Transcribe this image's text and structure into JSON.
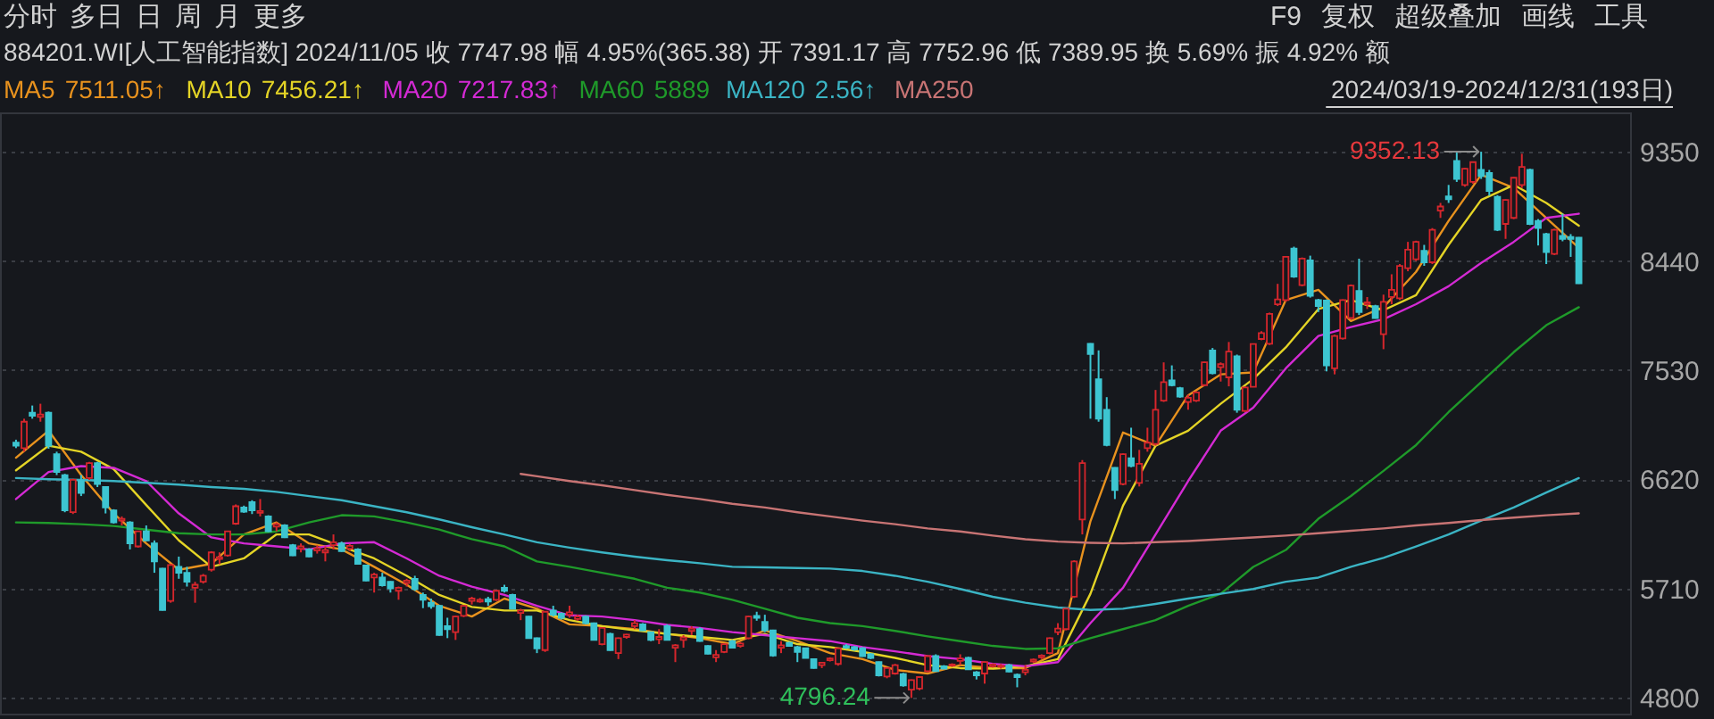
{
  "chart_data": {
    "type": "candlestick",
    "title": "884201.WI[人工智能指数] 2024/11/05 收 7747.98 幅 4.95%(365.38) 开 7391.17 高 7752.96 低 7389.95 换 5.69% 振 4.92% 额",
    "categories": [
      null,
      null,
      null,
      null,
      null,
      null,
      null,
      null,
      null,
      null,
      null,
      null,
      null,
      null,
      null,
      null,
      null,
      null,
      null,
      null,
      null,
      null,
      null,
      null,
      null,
      null,
      null,
      null,
      null,
      null,
      null,
      null,
      null,
      null,
      null,
      null,
      null,
      null,
      null,
      null,
      null,
      null,
      null,
      null,
      null,
      null,
      null,
      null,
      null,
      null,
      null,
      null,
      null,
      null,
      null,
      null,
      null,
      null,
      null,
      null,
      null,
      null,
      null,
      null,
      null,
      null,
      null,
      null,
      null,
      null,
      null,
      null,
      null,
      null,
      null,
      null,
      null,
      null,
      null,
      null,
      null,
      null,
      null,
      null,
      null,
      null,
      null,
      null,
      null,
      null,
      null,
      null,
      null,
      null,
      null,
      null,
      null,
      null,
      null,
      null,
      null,
      null,
      null,
      null,
      null,
      null,
      null,
      null,
      null,
      null,
      null,
      null,
      null,
      null,
      null,
      null,
      null,
      null,
      null,
      null,
      null,
      null,
      null,
      null,
      null,
      null,
      null,
      null,
      null,
      null,
      null,
      null,
      null,
      null,
      null,
      null,
      null,
      null,
      null,
      null,
      null,
      null,
      null,
      null,
      null,
      null,
      null,
      null,
      null,
      null,
      null,
      null,
      null,
      null,
      null,
      null,
      null,
      null,
      null,
      null,
      null,
      null,
      null,
      null,
      null,
      null,
      null,
      null,
      null,
      null,
      null,
      null,
      null,
      null,
      null,
      null,
      null,
      null,
      null,
      null,
      null,
      null,
      null,
      null,
      null,
      null,
      null,
      null,
      null,
      null,
      null,
      null,
      null
    ],
    "ohlc": [
      [
        6925,
        6950,
        6880,
        6900
      ],
      [
        6880,
        7125,
        6850,
        7100
      ],
      [
        7175,
        7235,
        7125,
        7150
      ],
      [
        7140,
        7250,
        7100,
        7160
      ],
      [
        7175,
        7185,
        6875,
        6900
      ],
      [
        6830,
        6850,
        6655,
        6680
      ],
      [
        6655,
        6665,
        6345,
        6360
      ],
      [
        6345,
        6625,
        6330,
        6615
      ],
      [
        6605,
        6655,
        6480,
        6505
      ],
      [
        6630,
        6765,
        6615,
        6755
      ],
      [
        6755,
        6765,
        6555,
        6580
      ],
      [
        6555,
        6560,
        6335,
        6385
      ],
      [
        6360,
        6370,
        6250,
        6260
      ],
      [
        6275,
        6310,
        6235,
        6290
      ],
      [
        6260,
        6270,
        6035,
        6085
      ],
      [
        6060,
        6190,
        6050,
        6185
      ],
      [
        6185,
        6235,
        6105,
        6110
      ],
      [
        6085,
        6110,
        5840,
        5935
      ],
      [
        5875,
        5880,
        5525,
        5530
      ],
      [
        5605,
        5915,
        5590,
        5905
      ],
      [
        5890,
        5975,
        5790,
        5840
      ],
      [
        5840,
        5890,
        5725,
        5765
      ],
      [
        5715,
        5765,
        5590,
        5740
      ],
      [
        5765,
        5830,
        5750,
        5815
      ],
      [
        5865,
        6020,
        5850,
        6010
      ],
      [
        5955,
        6010,
        5910,
        5970
      ],
      [
        5985,
        6190,
        5975,
        6185
      ],
      [
        6250,
        6410,
        6240,
        6395
      ],
      [
        6385,
        6400,
        6340,
        6350
      ],
      [
        6430,
        6445,
        6330,
        6360
      ],
      [
        6340,
        6455,
        6310,
        6355
      ],
      [
        6310,
        6320,
        6180,
        6185
      ],
      [
        6225,
        6260,
        6185,
        6245
      ],
      [
        6235,
        6245,
        6130,
        6135
      ],
      [
        6070,
        6080,
        5980,
        5985
      ],
      [
        6040,
        6085,
        6010,
        6060
      ],
      [
        6035,
        6045,
        5970,
        5975
      ],
      [
        6025,
        6070,
        6000,
        6045
      ],
      [
        6010,
        6060,
        5935,
        6030
      ],
      [
        6070,
        6160,
        6035,
        6095
      ],
      [
        6085,
        6100,
        6015,
        6020
      ],
      [
        6040,
        6080,
        6020,
        6065
      ],
      [
        6035,
        6045,
        5910,
        5915
      ],
      [
        5900,
        5905,
        5770,
        5775
      ],
      [
        5800,
        5840,
        5675,
        5825
      ],
      [
        5800,
        5840,
        5725,
        5735
      ],
      [
        5765,
        5770,
        5675,
        5710
      ],
      [
        5690,
        5725,
        5615,
        5715
      ],
      [
        5755,
        5790,
        5725,
        5775
      ],
      [
        5790,
        5815,
        5690,
        5705
      ],
      [
        5655,
        5675,
        5545,
        5615
      ],
      [
        5590,
        5625,
        5540,
        5560
      ],
      [
        5565,
        5570,
        5315,
        5320
      ],
      [
        5395,
        5465,
        5295,
        5370
      ],
      [
        5345,
        5480,
        5280,
        5475
      ],
      [
        5480,
        5570,
        5470,
        5565
      ],
      [
        5605,
        5640,
        5575,
        5625
      ],
      [
        5600,
        5630,
        5590,
        5615
      ],
      [
        5620,
        5640,
        5565,
        5600
      ],
      [
        5615,
        5695,
        5605,
        5690
      ],
      [
        5715,
        5740,
        5675,
        5690
      ],
      [
        5655,
        5665,
        5535,
        5540
      ],
      [
        5505,
        5540,
        5445,
        5525
      ],
      [
        5475,
        5480,
        5290,
        5295
      ],
      [
        5295,
        5300,
        5170,
        5210
      ],
      [
        5195,
        5520,
        5180,
        5515
      ],
      [
        5525,
        5565,
        5475,
        5490
      ],
      [
        5500,
        5510,
        5450,
        5465
      ],
      [
        5490,
        5565,
        5465,
        5510
      ],
      [
        5455,
        5490,
        5440,
        5475
      ],
      [
        5475,
        5485,
        5410,
        5420
      ],
      [
        5420,
        5425,
        5275,
        5280
      ],
      [
        5245,
        5385,
        5235,
        5380
      ],
      [
        5330,
        5340,
        5190,
        5195
      ],
      [
        5170,
        5300,
        5120,
        5295
      ],
      [
        5305,
        5330,
        5290,
        5325
      ],
      [
        5395,
        5445,
        5370,
        5420
      ],
      [
        5410,
        5420,
        5355,
        5360
      ],
      [
        5345,
        5350,
        5270,
        5280
      ],
      [
        5285,
        5370,
        5245,
        5305
      ],
      [
        5395,
        5410,
        5275,
        5280
      ],
      [
        5215,
        5245,
        5095,
        5235
      ],
      [
        5280,
        5320,
        5215,
        5300
      ],
      [
        5355,
        5395,
        5320,
        5375
      ],
      [
        5370,
        5385,
        5265,
        5270
      ],
      [
        5230,
        5235,
        5160,
        5165
      ],
      [
        5135,
        5195,
        5095,
        5155
      ],
      [
        5180,
        5250,
        5170,
        5245
      ],
      [
        5270,
        5280,
        5210,
        5215
      ],
      [
        5230,
        5260,
        5215,
        5250
      ],
      [
        5295,
        5480,
        5285,
        5475
      ],
      [
        5480,
        5515,
        5440,
        5465
      ],
      [
        5430,
        5490,
        5345,
        5360
      ],
      [
        5360,
        5365,
        5140,
        5150
      ],
      [
        5215,
        5270,
        5170,
        5235
      ],
      [
        5255,
        5265,
        5225,
        5230
      ],
      [
        5220,
        5230,
        5095,
        5180
      ],
      [
        5210,
        5215,
        5130,
        5130
      ],
      [
        5120,
        5125,
        5040,
        5045
      ],
      [
        5070,
        5095,
        5045,
        5090
      ],
      [
        5110,
        5135,
        5100,
        5125
      ],
      [
        5080,
        5215,
        5065,
        5210
      ],
      [
        5230,
        5245,
        5205,
        5215
      ],
      [
        5220,
        5230,
        5190,
        5200
      ],
      [
        5210,
        5220,
        5140,
        5145
      ],
      [
        5160,
        5170,
        5120,
        5130
      ],
      [
        5095,
        5100,
        4975,
        4985
      ],
      [
        4975,
        5050,
        4960,
        5045
      ],
      [
        5000,
        5080,
        4990,
        5070
      ],
      [
        4995,
        5005,
        4890,
        4900
      ],
      [
        4865,
        4950,
        4796.24,
        4945
      ],
      [
        4875,
        4975,
        4860,
        4970
      ],
      [
        5020,
        5150,
        5010,
        5145
      ],
      [
        5145,
        5160,
        5015,
        5020
      ],
      [
        5060,
        5070,
        5035,
        5040
      ],
      [
        5065,
        5085,
        5055,
        5075
      ],
      [
        5105,
        5160,
        5070,
        5125
      ],
      [
        5130,
        5140,
        5030,
        5035
      ],
      [
        5010,
        5020,
        4950,
        4985
      ],
      [
        5000,
        5100,
        4915,
        5095
      ],
      [
        5060,
        5085,
        5050,
        5075
      ],
      [
        5055,
        5080,
        5040,
        5065
      ],
      [
        5070,
        5080,
        5010,
        5015
      ],
      [
        4990,
        5000,
        4885,
        4970
      ],
      [
        5010,
        5070,
        4985,
        5030
      ],
      [
        5100,
        5125,
        5090,
        5115
      ],
      [
        5135,
        5160,
        5120,
        5150
      ],
      [
        5170,
        5300,
        5160,
        5295
      ],
      [
        5345,
        5420,
        5320,
        5375
      ],
      [
        5370,
        5545,
        5360,
        5540
      ],
      [
        5640,
        5945,
        5630,
        5935
      ],
      [
        6285,
        6780,
        6160,
        6755
      ],
      [
        7750,
        7755,
        7125,
        7665
      ],
      [
        7455,
        7695,
        7100,
        7125
      ],
      [
        7200,
        7305,
        6895,
        6905
      ],
      [
        6715,
        6720,
        6455,
        6530
      ],
      [
        6580,
        6835,
        6570,
        6830
      ],
      [
        6795,
        7050,
        6720,
        6730
      ],
      [
        6590,
        6865,
        6560,
        6750
      ],
      [
        6880,
        7050,
        6850,
        6925
      ],
      [
        6915,
        7365,
        6900,
        7200
      ],
      [
        7275,
        7595,
        7265,
        7430
      ],
      [
        7445,
        7570,
        7395,
        7405
      ],
      [
        7380,
        7390,
        7300,
        7310
      ],
      [
        7265,
        7325,
        7200,
        7300
      ],
      [
        7275,
        7355,
        7265,
        7345
      ],
      [
        7405,
        7600,
        7395,
        7595
      ],
      [
        7695,
        7715,
        7495,
        7505
      ],
      [
        7555,
        7595,
        7435,
        7580
      ],
      [
        7470,
        7765,
        7395,
        7685
      ],
      [
        7645,
        7660,
        7175,
        7200
      ],
      [
        7190,
        7395,
        7180,
        7385
      ],
      [
        7391.17,
        7752.96,
        7389.95,
        7747.98
      ],
      [
        7790,
        7855,
        7780,
        7840
      ],
      [
        7750,
        8010,
        7740,
        8000
      ],
      [
        8080,
        8250,
        8065,
        8120
      ],
      [
        8115,
        8480,
        8100,
        8475
      ],
      [
        8545,
        8560,
        8300,
        8310
      ],
      [
        8240,
        8470,
        8230,
        8460
      ],
      [
        8445,
        8485,
        8135,
        8150
      ],
      [
        8115,
        8125,
        8015,
        8065
      ],
      [
        8110,
        8120,
        7520,
        7570
      ],
      [
        7545,
        7825,
        7495,
        7815
      ],
      [
        7795,
        8120,
        7785,
        8115
      ],
      [
        7965,
        8245,
        7955,
        8235
      ],
      [
        8190,
        8460,
        7990,
        8015
      ],
      [
        8080,
        8140,
        8040,
        8095
      ],
      [
        8065,
        8075,
        7960,
        7965
      ],
      [
        7830,
        8160,
        7705,
        8100
      ],
      [
        8140,
        8330,
        8080,
        8200
      ],
      [
        8130,
        8415,
        8115,
        8400
      ],
      [
        8380,
        8600,
        8355,
        8535
      ],
      [
        8455,
        8610,
        8440,
        8600
      ],
      [
        8525,
        8575,
        8400,
        8430
      ],
      [
        8430,
        8715,
        8415,
        8700
      ],
      [
        8860,
        8925,
        8800,
        8895
      ],
      [
        8980,
        9075,
        8925,
        8955
      ],
      [
        9275,
        9345,
        9100,
        9125
      ],
      [
        9075,
        9215,
        9060,
        9210
      ],
      [
        9100,
        9270,
        9085,
        9265
      ],
      [
        9200,
        9352.13,
        9125,
        9150
      ],
      [
        9175,
        9200,
        8985,
        9025
      ],
      [
        8975,
        8990,
        8690,
        8700
      ],
      [
        8750,
        8955,
        8625,
        8950
      ],
      [
        8800,
        9140,
        8790,
        9135
      ],
      [
        9075,
        9335,
        9050,
        9225
      ],
      [
        9200,
        9210,
        8740,
        8750
      ],
      [
        8775,
        8790,
        8570,
        8715
      ],
      [
        8665,
        8675,
        8415,
        8515
      ],
      [
        8500,
        8710,
        8490,
        8700
      ],
      [
        8650,
        8835,
        8605,
        8625
      ],
      [
        8640,
        8665,
        8475,
        8625
      ],
      [
        8635,
        8640,
        8250,
        8255
      ]
    ],
    "series": [
      {
        "name": "MA5",
        "type": "line",
        "color": "#e8921e",
        "values": [
          6800,
          null,
          null,
          null,
          7025,
          null,
          null,
          null,
          6655,
          null,
          null,
          null,
          6335,
          null,
          null,
          null,
          6085,
          null,
          null,
          null,
          5865,
          null,
          null,
          null,
          5915,
          null,
          null,
          null,
          6160,
          null,
          null,
          null,
          6260,
          null,
          null,
          null,
          6085,
          null,
          null,
          null,
          6035,
          null,
          null,
          null,
          5890,
          null,
          null,
          null,
          5740,
          null,
          null,
          null,
          5565,
          null,
          null,
          null,
          5475,
          null,
          null,
          null,
          5625,
          null,
          null,
          null,
          5540,
          null,
          null,
          null,
          5410,
          null,
          null,
          null,
          5395,
          null,
          null,
          null,
          5370,
          null,
          null,
          null,
          5330,
          null,
          null,
          null,
          5295,
          null,
          null,
          null,
          5245,
          null,
          null,
          null,
          5360,
          null,
          null,
          null,
          5270,
          null,
          null,
          null,
          5170,
          null,
          null,
          null,
          5120,
          null,
          null,
          null,
          5030,
          null,
          null,
          null,
          5000,
          null,
          null,
          null,
          5070,
          null,
          null,
          null,
          5045,
          null,
          null,
          null,
          5045,
          null,
          null,
          null,
          5170,
          null,
          null,
          null,
          6270,
          null,
          null,
          null,
          7010,
          null,
          null,
          null,
          6900,
          null,
          null,
          null,
          7320,
          null,
          null,
          null,
          7495,
          null,
          null,
          null,
          7511.05,
          null,
          null,
          null,
          8115,
          null,
          null,
          null,
          8200,
          null,
          null,
          null,
          7940,
          null,
          null,
          null,
          8055,
          null,
          null,
          null,
          8350,
          null,
          null,
          null,
          8775,
          null,
          null,
          null,
          9160,
          null,
          null,
          null,
          9050,
          null,
          null,
          null,
          8800,
          null,
          null,
          null,
          8550
        ]
      },
      {
        "name": "MA10",
        "type": "line",
        "color": "#e4d426",
        "values": [
          6695,
          null,
          null,
          null,
          6900,
          null,
          null,
          null,
          6850,
          null,
          null,
          null,
          6705,
          null,
          null,
          null,
          6405,
          null,
          null,
          null,
          6110,
          null,
          null,
          null,
          5890,
          null,
          null,
          null,
          5960,
          null,
          null,
          null,
          6160,
          null,
          null,
          null,
          6160,
          null,
          null,
          null,
          6060,
          null,
          null,
          null,
          5960,
          null,
          null,
          null,
          5815,
          null,
          null,
          null,
          5655,
          null,
          null,
          null,
          5555,
          null,
          null,
          null,
          5525,
          null,
          null,
          null,
          5525,
          null,
          null,
          null,
          5445,
          null,
          null,
          null,
          5395,
          null,
          null,
          null,
          5360,
          null,
          null,
          null,
          5330,
          null,
          null,
          null,
          5305,
          null,
          null,
          null,
          5280,
          null,
          null,
          null,
          5330,
          null,
          null,
          null,
          5245,
          null,
          null,
          null,
          5220,
          null,
          null,
          null,
          5180,
          null,
          null,
          null,
          5130,
          null,
          null,
          null,
          5070,
          null,
          null,
          null,
          5045,
          null,
          null,
          null,
          5040,
          null,
          null,
          null,
          5060,
          null,
          null,
          null,
          5120,
          null,
          null,
          null,
          5665,
          null,
          null,
          null,
          6400,
          null,
          null,
          null,
          6900,
          null,
          null,
          null,
          7025,
          null,
          null,
          null,
          7250,
          null,
          null,
          null,
          7456.21,
          null,
          null,
          null,
          7720,
          null,
          null,
          null,
          8040,
          null,
          null,
          null,
          8115,
          null,
          null,
          null,
          8030,
          null,
          null,
          null,
          8155,
          null,
          null,
          null,
          8575,
          null,
          null,
          null,
          8950,
          null,
          null,
          null,
          9075,
          null,
          null,
          null,
          8925,
          null,
          null,
          null,
          8735
        ]
      },
      {
        "name": "MA20",
        "type": "line",
        "color": "#d42ad4",
        "values": [
          6455,
          null,
          null,
          null,
          6680,
          null,
          null,
          null,
          6730,
          null,
          null,
          null,
          6715,
          null,
          null,
          null,
          6605,
          null,
          null,
          null,
          6335,
          null,
          null,
          null,
          6135,
          null,
          null,
          null,
          6085,
          null,
          null,
          null,
          6060,
          null,
          null,
          null,
          6035,
          null,
          null,
          null,
          6085,
          null,
          null,
          null,
          6095,
          null,
          null,
          null,
          5960,
          null,
          null,
          null,
          5815,
          null,
          null,
          null,
          5725,
          null,
          null,
          null,
          5655,
          null,
          null,
          null,
          5565,
          null,
          null,
          null,
          5485,
          null,
          null,
          null,
          5475,
          null,
          null,
          null,
          5445,
          null,
          null,
          null,
          5405,
          null,
          null,
          null,
          5380,
          null,
          null,
          null,
          5345,
          null,
          null,
          null,
          5320,
          null,
          null,
          null,
          5295,
          null,
          null,
          null,
          5270,
          null,
          null,
          null,
          5220,
          null,
          null,
          null,
          5185,
          null,
          null,
          null,
          5145,
          null,
          null,
          null,
          5120,
          null,
          null,
          null,
          5080,
          null,
          null,
          null,
          5060,
          null,
          null,
          null,
          5095,
          null,
          null,
          null,
          5420,
          null,
          null,
          null,
          5715,
          null,
          null,
          null,
          6160,
          null,
          null,
          null,
          6605,
          null,
          null,
          null,
          7025,
          null,
          null,
          null,
          7217.83,
          null,
          null,
          null,
          7545,
          null,
          null,
          null,
          7815,
          null,
          null,
          null,
          7890,
          null,
          null,
          null,
          7955,
          null,
          null,
          null,
          8080,
          null,
          null,
          null,
          8230,
          null,
          null,
          null,
          8425,
          null,
          null,
          null,
          8600,
          null,
          null,
          null,
          8800,
          null,
          null,
          null,
          8835
        ]
      },
      {
        "name": "MA60",
        "type": "line",
        "color": "#1f9a2a",
        "values": [
          6260,
          null,
          null,
          null,
          6255,
          null,
          null,
          null,
          6245,
          null,
          null,
          null,
          6230,
          null,
          null,
          null,
          6200,
          null,
          null,
          null,
          6170,
          null,
          null,
          null,
          6160,
          null,
          null,
          null,
          6160,
          null,
          null,
          null,
          6185,
          null,
          null,
          null,
          6260,
          null,
          null,
          null,
          6320,
          null,
          null,
          null,
          6310,
          null,
          null,
          null,
          6260,
          null,
          null,
          null,
          6200,
          null,
          null,
          null,
          6120,
          null,
          null,
          null,
          6060,
          null,
          null,
          null,
          5935,
          null,
          null,
          null,
          5890,
          null,
          null,
          null,
          5840,
          null,
          null,
          null,
          5790,
          null,
          null,
          null,
          5715,
          null,
          null,
          null,
          5675,
          null,
          null,
          null,
          5615,
          null,
          null,
          null,
          5540,
          null,
          null,
          null,
          5465,
          null,
          null,
          null,
          5420,
          null,
          null,
          null,
          5395,
          null,
          null,
          null,
          5355,
          null,
          null,
          null,
          5310,
          null,
          null,
          null,
          5270,
          null,
          null,
          null,
          5230,
          null,
          null,
          null,
          5205,
          null,
          null,
          null,
          5210,
          null,
          null,
          null,
          5295,
          null,
          null,
          null,
          5370,
          null,
          null,
          null,
          5445,
          null,
          null,
          null,
          5565,
          null,
          null,
          null,
          5665,
          null,
          null,
          null,
          5889,
          null,
          null,
          null,
          6030,
          null,
          null,
          null,
          6290,
          null,
          null,
          null,
          6480,
          null,
          null,
          null,
          6690,
          null,
          null,
          null,
          6905,
          null,
          null,
          null,
          7180,
          null,
          null,
          null,
          7430,
          null,
          null,
          null,
          7680,
          null,
          null,
          null,
          7905,
          null,
          null,
          null,
          8055
        ]
      },
      {
        "name": "MA120",
        "type": "line",
        "color": "#3bb4c4",
        "values": [
          6630,
          null,
          null,
          null,
          6620,
          null,
          null,
          null,
          6615,
          null,
          null,
          null,
          6605,
          null,
          null,
          null,
          6590,
          null,
          null,
          null,
          6575,
          null,
          null,
          null,
          6555,
          null,
          null,
          null,
          6540,
          null,
          null,
          null,
          6515,
          null,
          null,
          null,
          6480,
          null,
          null,
          null,
          6445,
          null,
          null,
          null,
          6395,
          null,
          null,
          null,
          6345,
          null,
          null,
          null,
          6285,
          null,
          null,
          null,
          6220,
          null,
          null,
          null,
          6160,
          null,
          null,
          null,
          6095,
          null,
          null,
          null,
          6050,
          null,
          null,
          null,
          6010,
          null,
          null,
          null,
          5975,
          null,
          null,
          null,
          5945,
          null,
          null,
          null,
          5920,
          null,
          null,
          null,
          5890,
          null,
          null,
          null,
          5885,
          null,
          null,
          null,
          5880,
          null,
          null,
          null,
          5875,
          null,
          null,
          null,
          5855,
          null,
          null,
          null,
          5815,
          null,
          null,
          null,
          5765,
          null,
          null,
          null,
          5705,
          null,
          null,
          null,
          5640,
          null,
          null,
          null,
          5590,
          null,
          null,
          null,
          5550,
          null,
          null,
          null,
          5530,
          null,
          null,
          null,
          5540,
          null,
          null,
          null,
          5580,
          null,
          null,
          null,
          5625,
          null,
          null,
          null,
          5665,
          null,
          null,
          null,
          5705,
          null,
          null,
          null,
          5765,
          null,
          null,
          null,
          5800,
          null,
          null,
          null,
          5890,
          null,
          null,
          null,
          5965,
          null,
          null,
          null,
          6060,
          null,
          null,
          null,
          6160,
          null,
          null,
          null,
          6275,
          null,
          null,
          null,
          6385,
          null,
          null,
          null,
          6510,
          null,
          null,
          null,
          6630
        ]
      },
      {
        "name": "MA250",
        "type": "line",
        "color": "#c87474",
        "values": [
          null,
          null,
          null,
          null,
          null,
          null,
          null,
          null,
          null,
          null,
          null,
          null,
          null,
          null,
          null,
          null,
          null,
          null,
          null,
          null,
          null,
          null,
          null,
          null,
          null,
          null,
          null,
          null,
          null,
          null,
          null,
          null,
          null,
          null,
          null,
          null,
          null,
          null,
          null,
          null,
          null,
          null,
          null,
          null,
          null,
          null,
          null,
          null,
          null,
          null,
          null,
          null,
          null,
          null,
          null,
          null,
          null,
          null,
          null,
          null,
          null,
          null,
          6665,
          null,
          6645,
          null,
          null,
          null,
          6605,
          null,
          null,
          null,
          6570,
          null,
          null,
          null,
          6530,
          null,
          null,
          null,
          6490,
          null,
          null,
          null,
          6455,
          null,
          null,
          null,
          6415,
          null,
          null,
          null,
          6385,
          null,
          null,
          null,
          6345,
          null,
          null,
          null,
          6310,
          null,
          null,
          null,
          6275,
          null,
          null,
          null,
          6245,
          null,
          null,
          null,
          6210,
          null,
          null,
          null,
          6185,
          null,
          null,
          null,
          6150,
          null,
          null,
          null,
          6120,
          null,
          null,
          null,
          6100,
          null,
          null,
          null,
          6090,
          null,
          null,
          null,
          6085,
          null,
          null,
          null,
          6095,
          null,
          null,
          null,
          6105,
          null,
          null,
          null,
          6120,
          null,
          null,
          null,
          6135,
          null,
          null,
          null,
          6150,
          null,
          null,
          null,
          6170,
          null,
          null,
          null,
          6190,
          null,
          null,
          null,
          6210,
          null,
          null,
          null,
          6235,
          null,
          null,
          null,
          6255,
          null,
          null,
          null,
          6280,
          null,
          null,
          null,
          6300,
          null,
          null,
          null,
          6320,
          null,
          null,
          null,
          6335
        ]
      }
    ],
    "ylim": [
      4665,
      9680
    ],
    "yticks": [
      4800,
      5710,
      6620,
      7530,
      8440,
      9350
    ],
    "grid": "y",
    "legend": "top left",
    "annotations": [
      "分时",
      "多日",
      "日",
      "周",
      "月",
      "更多",
      "F9",
      "复权",
      "超级叠加",
      "画线",
      "工具",
      "2024/03/19-2024/12/31(193日)",
      "9352.13",
      "4796.24",
      "7511.05↑",
      "7456.21↑",
      "7217.83↑",
      "5889",
      "2.56↑"
    ]
  }
}
